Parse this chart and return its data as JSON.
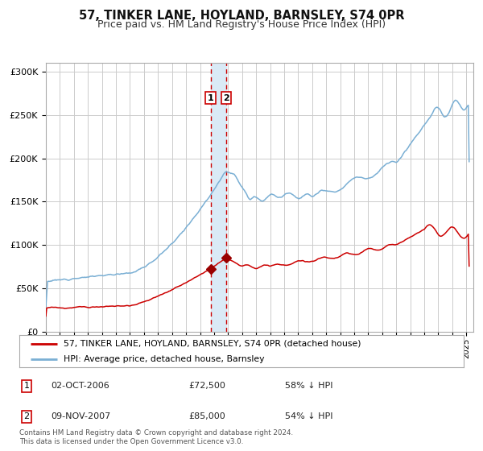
{
  "title": "57, TINKER LANE, HOYLAND, BARNSLEY, S74 0PR",
  "subtitle": "Price paid vs. HM Land Registry's House Price Index (HPI)",
  "title_fontsize": 10.5,
  "subtitle_fontsize": 9,
  "ylim": [
    0,
    310000
  ],
  "yticks": [
    0,
    50000,
    100000,
    150000,
    200000,
    250000,
    300000
  ],
  "ytick_labels": [
    "£0",
    "£50K",
    "£100K",
    "£150K",
    "£200K",
    "£250K",
    "£300K"
  ],
  "hpi_color": "#7aafd4",
  "price_color": "#cc0000",
  "grid_color": "#cccccc",
  "bg_color": "#ffffff",
  "sale1_date": 2006.75,
  "sale1_price": 72500,
  "sale1_label": "1",
  "sale2_date": 2007.85,
  "sale2_price": 85000,
  "sale2_label": "2",
  "vspan_color": "#daeaf6",
  "vline_color": "#cc0000",
  "marker_color": "#990000",
  "footnote": "Contains HM Land Registry data © Crown copyright and database right 2024.\nThis data is licensed under the Open Government Licence v3.0.",
  "legend1_label": "57, TINKER LANE, HOYLAND, BARNSLEY, S74 0PR (detached house)",
  "legend2_label": "HPI: Average price, detached house, Barnsley",
  "table_rows": [
    {
      "num": "1",
      "date": "02-OCT-2006",
      "price": "£72,500",
      "hpi": "58% ↓ HPI"
    },
    {
      "num": "2",
      "date": "09-NOV-2007",
      "price": "£85,000",
      "hpi": "54% ↓ HPI"
    }
  ]
}
